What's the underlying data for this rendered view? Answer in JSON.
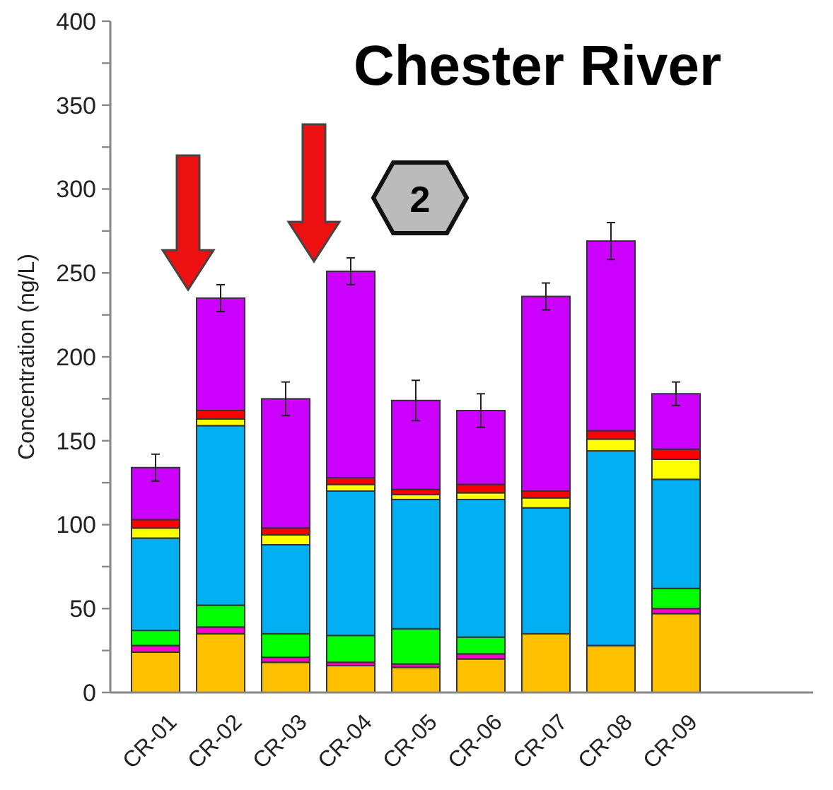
{
  "chart_data": {
    "type": "bar",
    "title": "Chester River",
    "ylabel": "Concentration (ng/L)",
    "stacked": true,
    "categories": [
      "CR-01",
      "CR-02",
      "CR-03",
      "CR-04",
      "CR-05",
      "CR-06",
      "CR-07",
      "CR-08",
      "CR-09"
    ],
    "series": [
      {
        "color": "#ffc000",
        "values": [
          24,
          35,
          18,
          16,
          15,
          20,
          35,
          28,
          47
        ]
      },
      {
        "color": "#ff00cc",
        "values": [
          4,
          4,
          3,
          2,
          2,
          3,
          0,
          0,
          3
        ]
      },
      {
        "color": "#00ff00",
        "values": [
          9,
          13,
          14,
          16,
          21,
          10,
          0,
          0,
          12
        ]
      },
      {
        "color": "#00b0f0",
        "values": [
          55,
          107,
          53,
          86,
          77,
          82,
          75,
          116,
          65
        ]
      },
      {
        "color": "#ffff00",
        "values": [
          6,
          4,
          6,
          4,
          3,
          4,
          6,
          7,
          12
        ]
      },
      {
        "color": "#ff0000",
        "values": [
          5,
          5,
          4,
          4,
          3,
          5,
          4,
          5,
          6
        ]
      },
      {
        "color": "#cc00ff",
        "values": [
          31,
          67,
          77,
          123,
          53,
          44,
          116,
          113,
          33
        ],
        "errors": [
          8,
          8,
          10,
          8,
          12,
          10,
          8,
          11,
          7
        ]
      }
    ],
    "ylim": [
      0,
      400
    ],
    "yticks": [
      0,
      {
        "value": 25,
        "label": null
      },
      50,
      {
        "value": 75,
        "label": null
      },
      100,
      {
        "value": 125,
        "label": null
      },
      150,
      {
        "value": 175,
        "label": null
      },
      200,
      {
        "value": 225,
        "label": null
      },
      250,
      {
        "value": 275,
        "label": null
      },
      300,
      {
        "value": 325,
        "label": null
      },
      350,
      {
        "value": 375,
        "label": null
      },
      400
    ],
    "annotations": [
      "2"
    ],
    "grid": false
  }
}
